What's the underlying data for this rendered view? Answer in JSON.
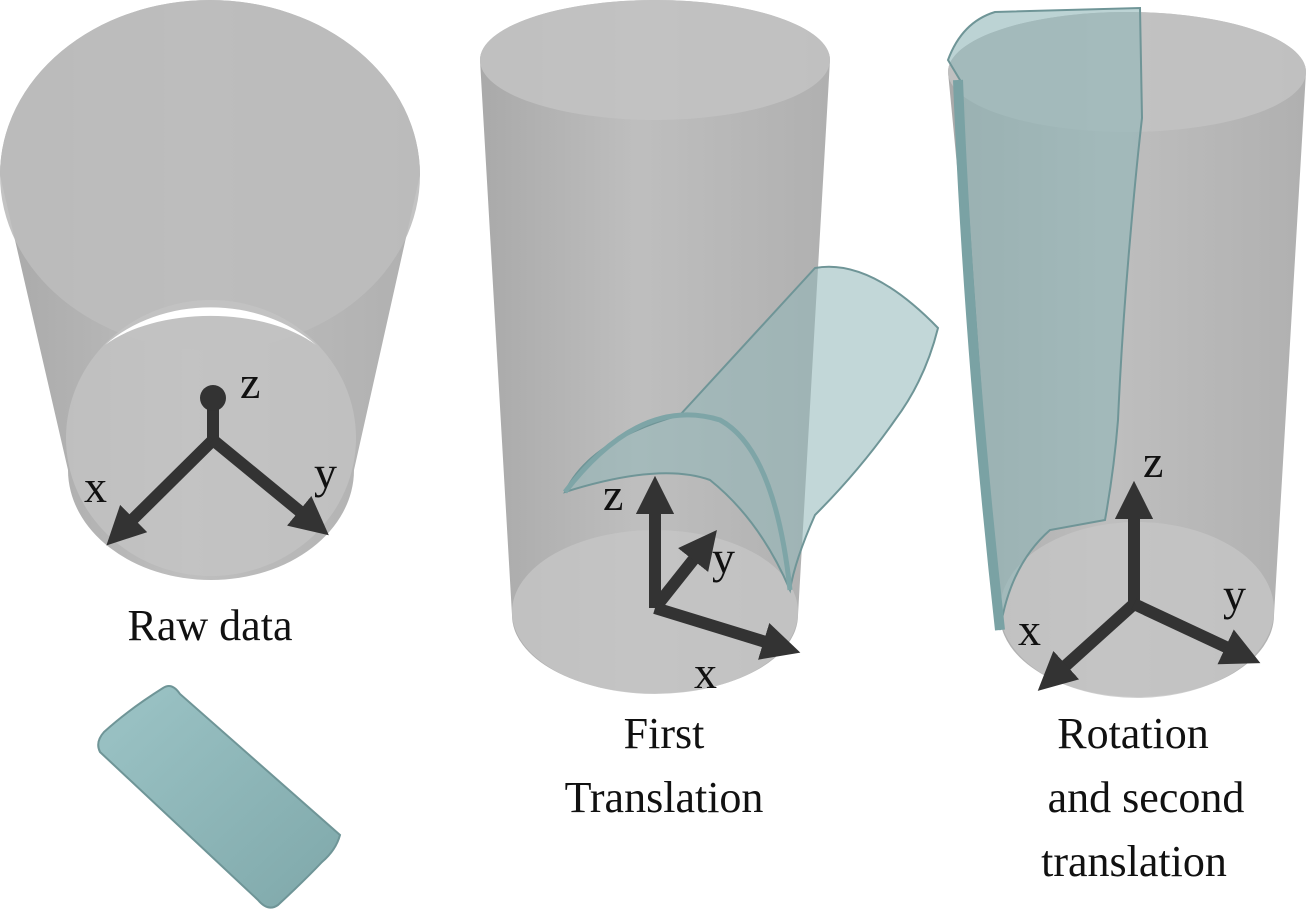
{
  "panels": [
    {
      "caption": [
        "Raw data"
      ],
      "axes": {
        "z": "z",
        "x": "x",
        "y": "y"
      }
    },
    {
      "caption": [
        "First",
        "Translation"
      ],
      "axes": {
        "z": "z",
        "y": "y",
        "x": "x"
      }
    },
    {
      "caption": [
        "Rotation",
        "and second",
        "translation"
      ],
      "axes": {
        "z": "z",
        "x": "x",
        "y": "y"
      }
    }
  ],
  "colors": {
    "cylinder_body": "#a9a9a9",
    "cylinder_cap": "#bdbdbd",
    "specimen": "#8fb6b8",
    "specimen_edge": "#6f9597",
    "axis": "#333333",
    "text": "#111111"
  }
}
